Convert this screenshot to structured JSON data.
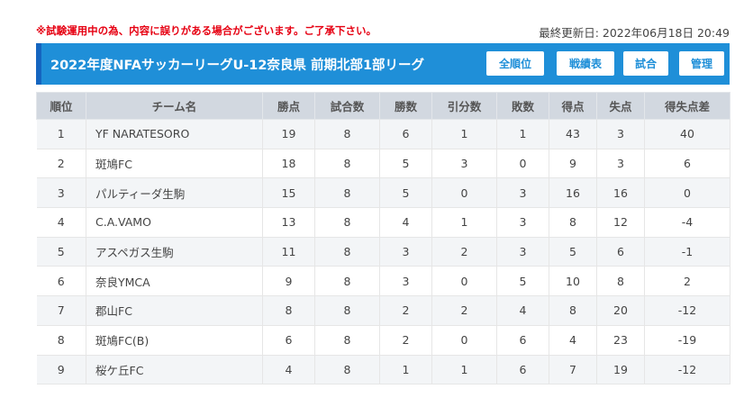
{
  "notice": "※試験運用中の為、内容に誤りがある場合がございます。ご了承下さい。",
  "updated": "最終更新日: 2022年06月18日 20:49",
  "league_title": "2022年度NFAサッカーリーグU-12奈良県 前期北部1部リーグ",
  "buttons": {
    "standings": "全順位",
    "results": "戦績表",
    "matches": "試合",
    "admin": "管理"
  },
  "table": {
    "headers": [
      "順位",
      "チーム名",
      "勝点",
      "試合数",
      "勝数",
      "引分数",
      "敗数",
      "得点",
      "失点",
      "得失点差"
    ],
    "rows": [
      [
        "1",
        "YF NARATESORO",
        "19",
        "8",
        "6",
        "1",
        "1",
        "43",
        "3",
        "40"
      ],
      [
        "2",
        "斑鳩FC",
        "18",
        "8",
        "5",
        "3",
        "0",
        "9",
        "3",
        "6"
      ],
      [
        "3",
        "パルティーダ生駒",
        "15",
        "8",
        "5",
        "0",
        "3",
        "16",
        "16",
        "0"
      ],
      [
        "4",
        "C.A.VAMO",
        "13",
        "8",
        "4",
        "1",
        "3",
        "8",
        "12",
        "-4"
      ],
      [
        "5",
        "アスペガス生駒",
        "11",
        "8",
        "3",
        "2",
        "3",
        "5",
        "6",
        "-1"
      ],
      [
        "6",
        "奈良YMCA",
        "9",
        "8",
        "3",
        "0",
        "5",
        "10",
        "8",
        "2"
      ],
      [
        "7",
        "郡山FC",
        "8",
        "8",
        "2",
        "2",
        "4",
        "8",
        "20",
        "-12"
      ],
      [
        "8",
        "斑鳩FC(B)",
        "6",
        "8",
        "2",
        "0",
        "6",
        "4",
        "23",
        "-19"
      ],
      [
        "9",
        "桜ケ丘FC",
        "4",
        "8",
        "1",
        "1",
        "6",
        "7",
        "19",
        "-12"
      ]
    ]
  }
}
